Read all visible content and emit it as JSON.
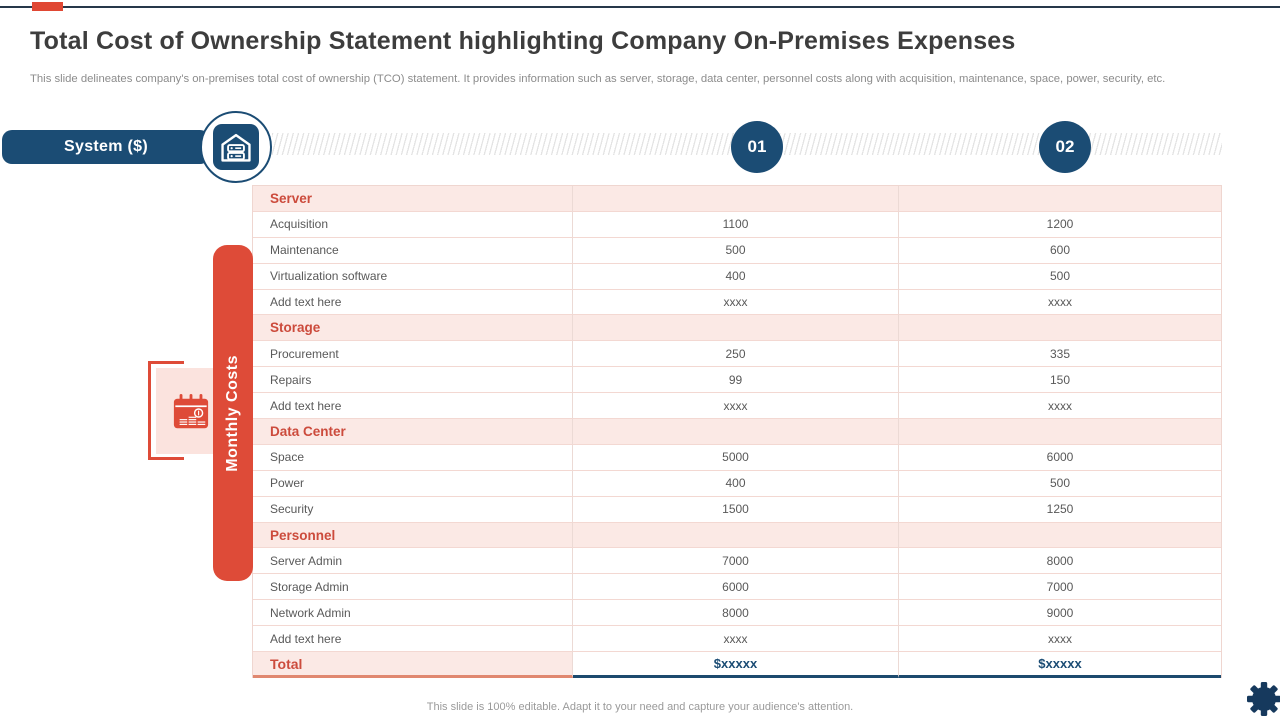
{
  "slide": {
    "title": "Total Cost of Ownership Statement highlighting Company On-Premises Expenses",
    "subtitle": "This slide delineates company's on-premises total cost of ownership (TCO) statement. It provides information such as server, storage, data center, personnel costs along with acquisition, maintenance, space, power, security, etc.",
    "footer": "This slide is 100% editable. Adapt it to your need and capture your audience's attention."
  },
  "header": {
    "system_label": "System ($)",
    "columns": [
      "01",
      "02"
    ]
  },
  "sidebar": {
    "banner_label": "Monthly Costs"
  },
  "icons": {
    "system": "server-house-icon",
    "monthly": "calendar-cost-icon",
    "corner": "gear-icon"
  },
  "colors": {
    "navy": "#1B4C74",
    "red": "#DE4B38",
    "red_text": "#CC4B3C",
    "pink_row": "#FBE9E5",
    "pink_panel": "#FBE3DE",
    "body_text": "#595959",
    "muted_text": "#8C8C8C",
    "total_underline": "#1C4A6E"
  },
  "table": {
    "sections": [
      {
        "name": "Server",
        "rows": [
          {
            "label": "Acquisition",
            "col1": "1100",
            "col2": "1200"
          },
          {
            "label": "Maintenance",
            "col1": "500",
            "col2": "600"
          },
          {
            "label": "Virtualization software",
            "col1": "400",
            "col2": "500"
          },
          {
            "label": "Add text here",
            "col1": "xxxx",
            "col2": "xxxx"
          }
        ]
      },
      {
        "name": "Storage",
        "rows": [
          {
            "label": "Procurement",
            "col1": "250",
            "col2": "335"
          },
          {
            "label": "Repairs",
            "col1": "99",
            "col2": "150"
          },
          {
            "label": "Add text here",
            "col1": "xxxx",
            "col2": "xxxx"
          }
        ]
      },
      {
        "name": "Data Center",
        "rows": [
          {
            "label": "Space",
            "col1": "5000",
            "col2": "6000"
          },
          {
            "label": "Power",
            "col1": "400",
            "col2": "500"
          },
          {
            "label": "Security",
            "col1": "1500",
            "col2": "1250"
          }
        ]
      },
      {
        "name": "Personnel",
        "rows": [
          {
            "label": "Server Admin",
            "col1": "7000",
            "col2": "8000"
          },
          {
            "label": "Storage Admin",
            "col1": "6000",
            "col2": "7000"
          },
          {
            "label": "Network Admin",
            "col1": "8000",
            "col2": "9000"
          },
          {
            "label": "Add text here",
            "col1": "xxxx",
            "col2": "xxxx"
          }
        ]
      }
    ],
    "total": {
      "label": "Total",
      "col1": "$xxxxx",
      "col2": "$xxxxx"
    }
  }
}
